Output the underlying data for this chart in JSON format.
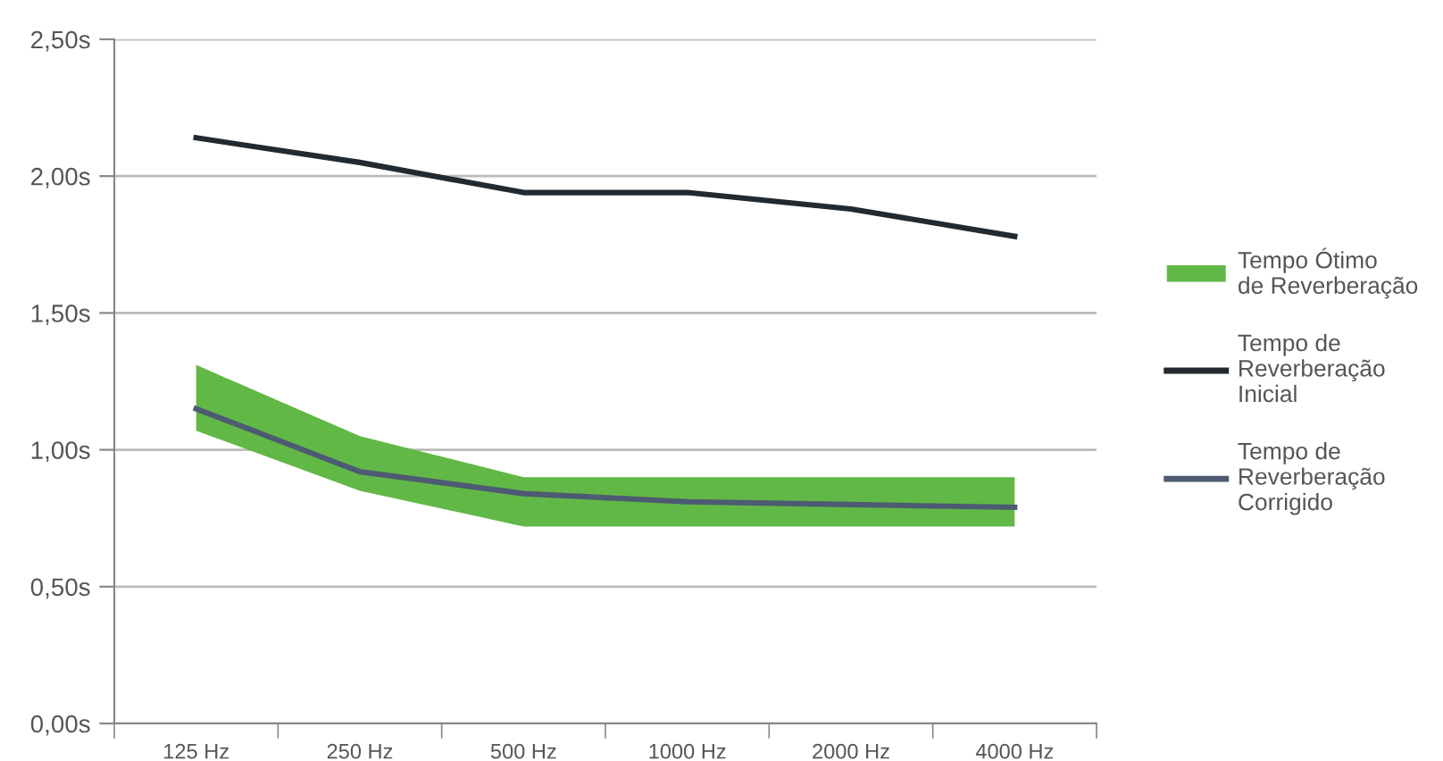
{
  "chart_data": {
    "type": "line",
    "categories": [
      "125 Hz",
      "250 Hz",
      "500 Hz",
      "1000 Hz",
      "2000 Hz",
      "4000 Hz"
    ],
    "series": [
      {
        "name": "Tempo Ótimo\nde Reverberação",
        "type": "area",
        "color": "#62b847",
        "values": [
          null,
          null,
          null,
          null,
          null,
          null
        ],
        "lower": [
          1.07,
          0.85,
          0.72,
          0.72,
          0.72,
          0.72
        ],
        "upper": [
          1.31,
          1.05,
          0.9,
          0.9,
          0.9,
          0.9
        ]
      },
      {
        "name": "Tempo de\nReverberação\nInicial",
        "color": "#222a30",
        "values": [
          2.14,
          2.05,
          1.94,
          1.94,
          1.88,
          1.78
        ]
      },
      {
        "name": "Tempo de\nReverberação\nCorrigido",
        "color": "#4d5b72",
        "values": [
          1.15,
          0.92,
          0.84,
          0.81,
          0.8,
          0.79
        ]
      }
    ],
    "ylim": [
      0,
      2.5
    ],
    "yticks": [
      {
        "value": 0,
        "label": "0,00s"
      },
      {
        "value": 0.5,
        "label": "0,50s"
      },
      {
        "value": 1,
        "label": "1,00s"
      },
      {
        "value": 1.5,
        "label": "1,50s"
      },
      {
        "value": 2,
        "label": "2,00s"
      },
      {
        "value": 2.5,
        "label": "2,50s"
      }
    ],
    "grid": "y",
    "legend": "right",
    "marker": "none",
    "line_style": "solid"
  }
}
